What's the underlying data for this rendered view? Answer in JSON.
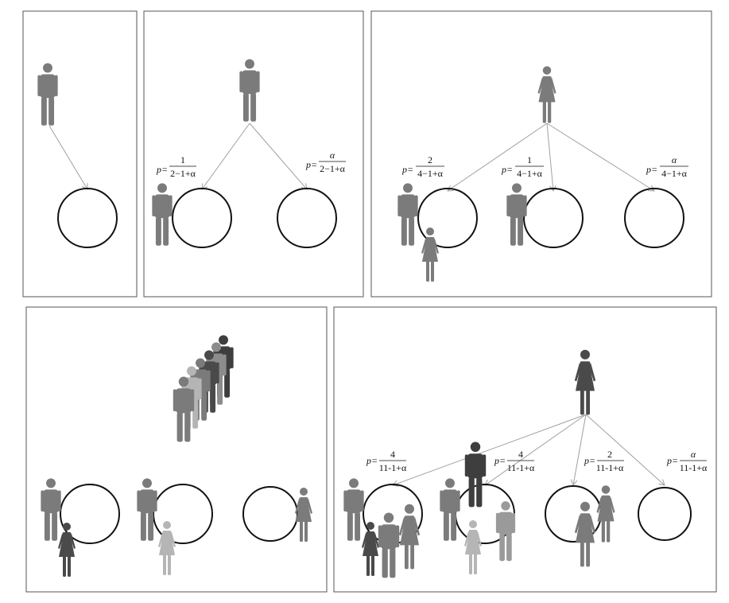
{
  "colors": {
    "person_dark": "#4a4a4a",
    "person_mid": "#7b7b7b",
    "person_light": "#b5b5b5",
    "table_stroke": "#111111",
    "arrow": "#a0a0a0"
  },
  "icons": {
    "person": "person-icon",
    "woman": "woman-icon",
    "table": "table-circle"
  },
  "labels": {
    "p_prefix": "p=",
    "panel2": [
      {
        "num": "1",
        "den": "2−1+α"
      },
      {
        "num": "α",
        "den": "2−1+α"
      }
    ],
    "panel3": [
      {
        "num": "2",
        "den": "4−1+α"
      },
      {
        "num": "1",
        "den": "4−1+α"
      },
      {
        "num": "α",
        "den": "4−1+α"
      }
    ],
    "panel5": [
      {
        "num": "4",
        "den": "11-1+α"
      },
      {
        "num": "4",
        "den": "11-1+α"
      },
      {
        "num": "2",
        "den": "11-1+α"
      },
      {
        "num": "α",
        "den": "11-1+α"
      }
    ]
  }
}
